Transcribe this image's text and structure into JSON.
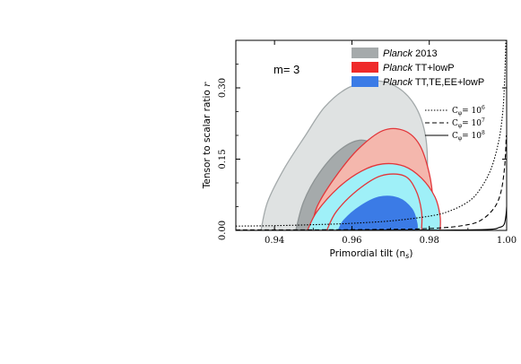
{
  "chart_data": {
    "type": "contour",
    "xlabel": "Primordial tilt (n",
    "xlabel_sub": "s",
    "xlabel_close": ")",
    "ylabel": "Tensor to scalar ratio",
    "ylabel_var": "r",
    "xlim": [
      0.93,
      1.0
    ],
    "ylim": [
      0.0,
      0.4
    ],
    "xticks": [
      "0.94",
      "0.96",
      "0.98",
      "1.00"
    ],
    "xtick_values": [
      0.94,
      0.96,
      0.98,
      1.0
    ],
    "yticks": [
      "0.00",
      "0.15",
      "0.30"
    ],
    "ytick_values": [
      0.0,
      0.15,
      0.3
    ],
    "annotation": "m= 3",
    "legend_top": [
      {
        "italic": "Planck",
        "text": " 2013",
        "color": "#a5aaab"
      },
      {
        "italic": "Planck",
        "text": " TT+lowP",
        "color": "#ef2a2a"
      },
      {
        "italic": "Planck",
        "text": " TT,TE,EE+lowP",
        "color": "#3b7be6"
      }
    ],
    "legend_lines": [
      {
        "label": "C",
        "sub": "φ",
        "eq": "= 10",
        "exp": "6",
        "dash": "1.5,1.8",
        "c_phi": 1000000
      },
      {
        "label": "C",
        "sub": "φ",
        "eq": "= 10",
        "exp": "7",
        "dash": "5,3",
        "c_phi": 10000000
      },
      {
        "label": "C",
        "sub": "φ",
        "eq": "= 10",
        "exp": "8",
        "dash": "",
        "c_phi": 100000000
      }
    ],
    "contours": [
      {
        "name": "Planck 2013 95%",
        "color": "#dfe2e2",
        "stroke": "#a3a9aa",
        "points": [
          [
            0.9365,
            0.0
          ],
          [
            0.9382,
            0.06
          ],
          [
            0.9425,
            0.13
          ],
          [
            0.948,
            0.2
          ],
          [
            0.953,
            0.26
          ],
          [
            0.959,
            0.3
          ],
          [
            0.966,
            0.315
          ],
          [
            0.972,
            0.3
          ],
          [
            0.9765,
            0.26
          ],
          [
            0.979,
            0.2
          ],
          [
            0.9795,
            0.12
          ],
          [
            0.9785,
            0.04
          ],
          [
            0.977,
            0.0
          ]
        ]
      },
      {
        "name": "Planck 2013 68%",
        "color": "#a5aaab",
        "stroke": "#8e9495",
        "points": [
          [
            0.9455,
            0.0
          ],
          [
            0.9475,
            0.06
          ],
          [
            0.9515,
            0.12
          ],
          [
            0.957,
            0.17
          ],
          [
            0.9625,
            0.19
          ],
          [
            0.967,
            0.17
          ],
          [
            0.9695,
            0.12
          ],
          [
            0.971,
            0.06
          ],
          [
            0.9715,
            0.0
          ]
        ]
      },
      {
        "name": "Planck TT+lowP 95%",
        "color": "#f4b7ad",
        "stroke": "#e2363a",
        "points": [
          [
            0.9495,
            0.0
          ],
          [
            0.951,
            0.05
          ],
          [
            0.9555,
            0.11
          ],
          [
            0.9615,
            0.17
          ],
          [
            0.968,
            0.21
          ],
          [
            0.9735,
            0.21
          ],
          [
            0.9775,
            0.18
          ],
          [
            0.98,
            0.12
          ],
          [
            0.981,
            0.06
          ],
          [
            0.981,
            0.0
          ]
        ]
      },
      {
        "name": "Planck TT,TE,EE+lowP 95%",
        "color": "#9ff0f8",
        "stroke": "#e2363a",
        "points": [
          [
            0.9485,
            0.0
          ],
          [
            0.951,
            0.04
          ],
          [
            0.9565,
            0.09
          ],
          [
            0.9625,
            0.125
          ],
          [
            0.968,
            0.14
          ],
          [
            0.9735,
            0.135
          ],
          [
            0.978,
            0.11
          ],
          [
            0.9815,
            0.07
          ],
          [
            0.9828,
            0.03
          ],
          [
            0.9828,
            0.0
          ]
        ]
      },
      {
        "name": "Planck TT+lowP 68%",
        "color": "#9ff0f8",
        "stroke": "#e2363a",
        "points": [
          [
            0.9535,
            0.0
          ],
          [
            0.956,
            0.04
          ],
          [
            0.9615,
            0.085
          ],
          [
            0.9675,
            0.115
          ],
          [
            0.9735,
            0.115
          ],
          [
            0.9765,
            0.085
          ],
          [
            0.978,
            0.04
          ],
          [
            0.978,
            0.0
          ]
        ]
      },
      {
        "name": "Planck TT,TE,EE+lowP 68%",
        "color": "#3b7be6",
        "stroke": "#3b7be6",
        "points": [
          [
            0.9565,
            0.0
          ],
          [
            0.958,
            0.022
          ],
          [
            0.962,
            0.05
          ],
          [
            0.967,
            0.07
          ],
          [
            0.972,
            0.068
          ],
          [
            0.9755,
            0.045
          ],
          [
            0.9768,
            0.015
          ],
          [
            0.9768,
            0.0
          ]
        ]
      }
    ],
    "model_curves": [
      {
        "c_phi": 1000000,
        "dash": "1.5,1.8",
        "points": [
          [
            0.93,
            0.009
          ],
          [
            0.94,
            0.01
          ],
          [
            0.95,
            0.012
          ],
          [
            0.96,
            0.015
          ],
          [
            0.97,
            0.02
          ],
          [
            0.98,
            0.03
          ],
          [
            0.985,
            0.04
          ],
          [
            0.99,
            0.06
          ],
          [
            0.993,
            0.085
          ],
          [
            0.996,
            0.13
          ],
          [
            0.998,
            0.19
          ],
          [
            0.999,
            0.25
          ],
          [
            0.9995,
            0.32
          ],
          [
            0.9998,
            0.4
          ]
        ]
      },
      {
        "c_phi": 10000000,
        "dash": "5,3",
        "points": [
          [
            0.93,
            0.001
          ],
          [
            0.96,
            0.0015
          ],
          [
            0.98,
            0.004
          ],
          [
            0.99,
            0.012
          ],
          [
            0.994,
            0.025
          ],
          [
            0.997,
            0.05
          ],
          [
            0.9985,
            0.08
          ],
          [
            0.9993,
            0.12
          ],
          [
            0.9997,
            0.16
          ],
          [
            0.9999,
            0.2
          ]
        ]
      },
      {
        "c_phi": 100000000,
        "dash": "",
        "points": [
          [
            0.93,
            0.0002
          ],
          [
            0.98,
            0.0005
          ],
          [
            0.995,
            0.002
          ],
          [
            0.998,
            0.006
          ],
          [
            0.9993,
            0.012
          ],
          [
            0.9998,
            0.03
          ],
          [
            1.0,
            0.05
          ]
        ]
      }
    ]
  }
}
